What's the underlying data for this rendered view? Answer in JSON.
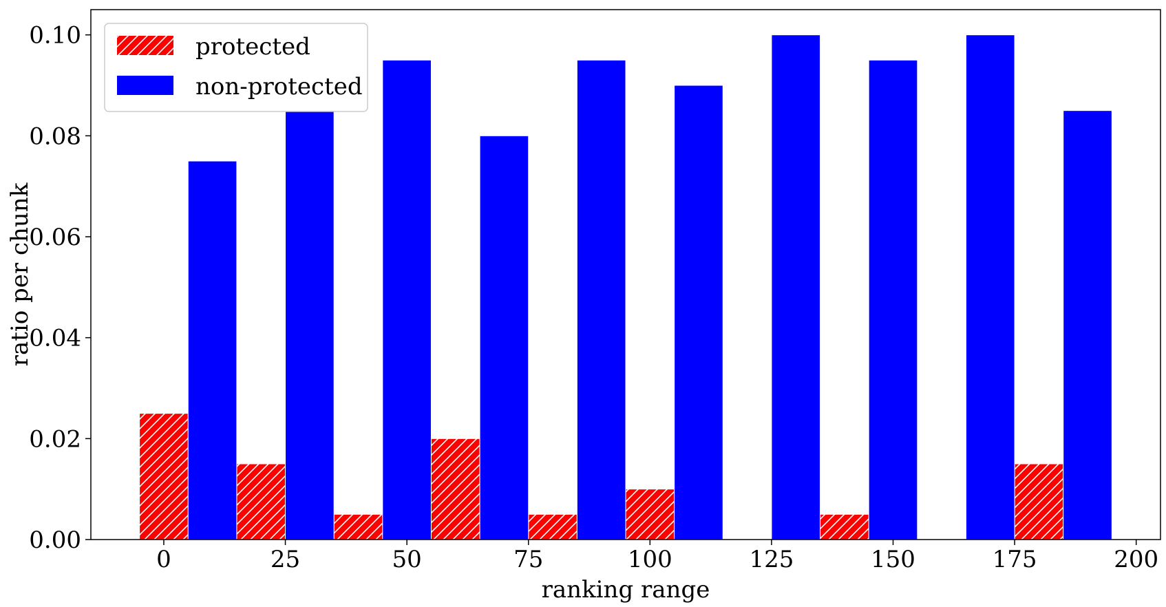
{
  "chart_data": {
    "type": "bar",
    "x_ticks": [
      0,
      25,
      50,
      75,
      100,
      125,
      150,
      175,
      200
    ],
    "x_tick_labels": [
      "0",
      "25",
      "50",
      "75",
      "100",
      "125",
      "150",
      "175",
      "200"
    ],
    "y_ticks": [
      0.0,
      0.02,
      0.04,
      0.06,
      0.08,
      0.1
    ],
    "y_tick_labels": [
      "0.00",
      "0.02",
      "0.04",
      "0.06",
      "0.08",
      "0.10"
    ],
    "xlim": [
      -15,
      205
    ],
    "ylim": [
      0,
      0.105
    ],
    "xlabel": "ranking range",
    "ylabel": "ratio per chunk",
    "grid": false,
    "legend_position": "top-left",
    "x": [
      0,
      20,
      40,
      60,
      80,
      100,
      120,
      140,
      160,
      180
    ],
    "bar_width": 10,
    "series": [
      {
        "name": "protected",
        "color": "#ff0000",
        "pattern": "diagonal-hatch",
        "offset": 0,
        "values": [
          0.025,
          0.015,
          0.005,
          0.02,
          0.005,
          0.01,
          0.0,
          0.005,
          0.0,
          0.015
        ]
      },
      {
        "name": "non-protected",
        "color": "#0000ff",
        "pattern": "solid",
        "offset": 10,
        "values": [
          0.075,
          0.085,
          0.095,
          0.08,
          0.095,
          0.09,
          0.1,
          0.095,
          0.1,
          0.085
        ]
      }
    ]
  }
}
